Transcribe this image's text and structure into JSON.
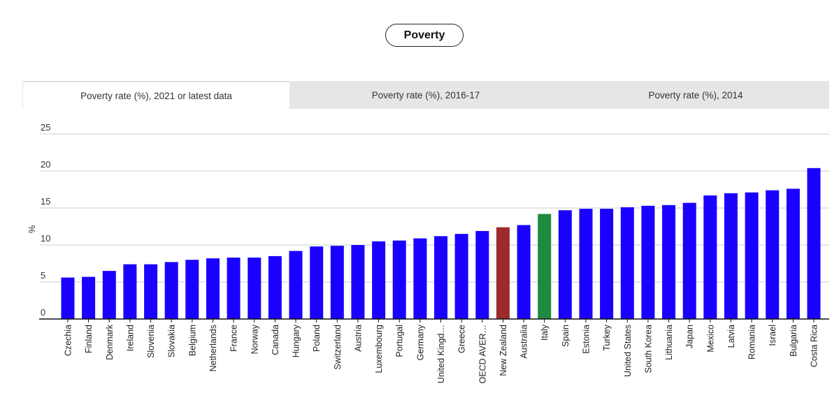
{
  "header": {
    "pill_label": "Poverty"
  },
  "tabs": [
    {
      "label": "Poverty rate (%), 2021 or latest data"
    },
    {
      "label": "Poverty rate (%), 2016-17"
    },
    {
      "label": "Poverty rate (%), 2014"
    }
  ],
  "colors": {
    "default": "#1a00ff",
    "new_zealand": "#9e2a2b",
    "italy": "#1e8a3e",
    "grid": "#cccccc",
    "axis": "#111111"
  },
  "chart_data": {
    "type": "bar",
    "title": "",
    "xlabel": "",
    "ylabel": "%",
    "ylim": [
      0,
      25
    ],
    "yticks": [
      0,
      5,
      10,
      15,
      20,
      25
    ],
    "grid": true,
    "categories": [
      "Czechia",
      "Finland",
      "Denmark",
      "Ireland",
      "Slovenia",
      "Slovakia",
      "Belgium",
      "Netherlands",
      "France",
      "Norway",
      "Canada",
      "Hungary",
      "Poland",
      "Switzerland",
      "Austria",
      "Luxembourg",
      "Portugal",
      "Germany",
      "United Kingd…",
      "Greece",
      "OECD AVER…",
      "New Zealand",
      "Australia",
      "Italy",
      "Spain",
      "Estonia",
      "Turkey",
      "United States",
      "South Korea",
      "Lithuania",
      "Japan",
      "Mexico",
      "Latvia",
      "Romania",
      "Israel",
      "Bulgaria",
      "Costa Rica"
    ],
    "values": [
      5.6,
      5.7,
      6.5,
      7.4,
      7.4,
      7.7,
      8.0,
      8.2,
      8.3,
      8.3,
      8.5,
      9.2,
      9.8,
      9.9,
      10.0,
      10.5,
      10.6,
      10.9,
      11.2,
      11.5,
      11.9,
      12.4,
      12.7,
      14.2,
      14.7,
      14.9,
      14.9,
      15.1,
      15.3,
      15.4,
      15.7,
      16.7,
      17.0,
      17.1,
      17.4,
      17.6,
      20.4
    ],
    "highlight": {
      "New Zealand": "new_zealand",
      "Italy": "italy"
    }
  }
}
